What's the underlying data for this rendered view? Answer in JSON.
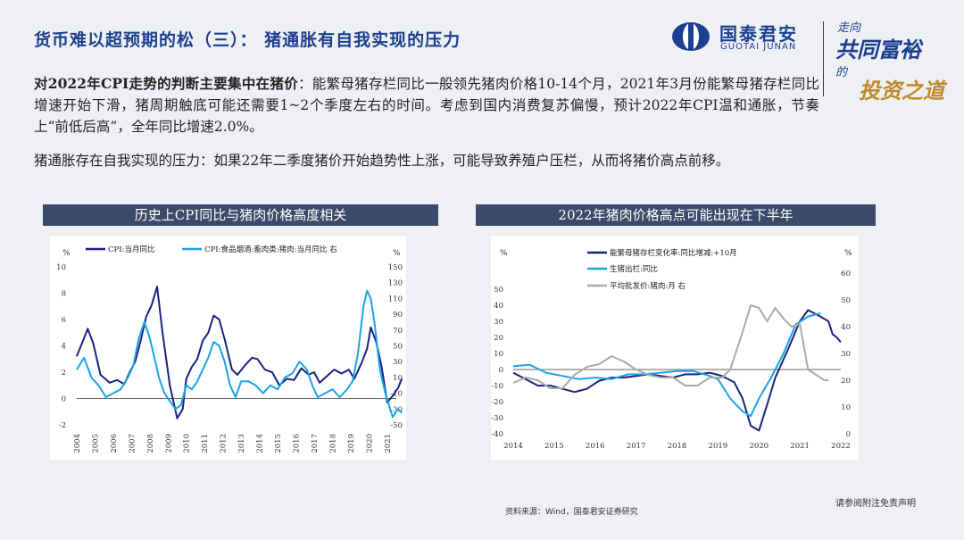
{
  "header": {
    "title": "货币难以超预期的松（三）：  猪通胀有自我实现的压力",
    "logo_cn": "国泰君安",
    "logo_en": "GUOTAI JUNAN",
    "slogan_1": "走向",
    "slogan_2": "共同富裕",
    "slogan_3": "的",
    "slogan_4": "投资之道"
  },
  "body": {
    "p1_bold": "对2022年CPI走势的判断主要集中在猪价",
    "p1_rest": "：能繁母猪存栏同比一般领先猪肉价格10-14个月，2021年3月份能繁母猪存栏同比增速开始下滑，猪周期触底可能还需要1~2个季度左右的时间。考虑到国内消费复苏偏慢，预计2022年CPI温和通胀，节奏上“前低后高”，全年同比增速2.0%。",
    "p2": "猪通胀存在自我实现的压力：如果22年二季度猪价开始趋势性上涨，可能导致养殖户压栏，从而将猪价高点前移。"
  },
  "section1_title": "历史上CPI同比与猪肉价格高度相关",
  "section2_title": "2022年猪肉价格高点可能出现在下半年",
  "footer": {
    "source": "资料来源：Wind，国泰君安证券研究",
    "disclaimer": "请参阅附注免责声明"
  },
  "colors": {
    "primary": "#1d3f8f",
    "header_bar": "#3a4a68",
    "series_navy": "#1a237e",
    "series_cyan": "#1aa3e8",
    "series_gray": "#aaaaaa"
  },
  "chart_data": [
    {
      "type": "line",
      "left_unit": "%",
      "right_unit": "%",
      "ylim_left": [
        -2,
        10
      ],
      "ylim_right": [
        -50,
        150
      ],
      "yticks_left": [
        -2,
        0,
        2,
        4,
        6,
        8,
        10
      ],
      "yticks_right": [
        -50,
        -30,
        -10,
        10,
        30,
        50,
        70,
        90,
        110,
        130,
        150
      ],
      "xlim": [
        2004,
        2021.5
      ],
      "xticks": [
        "2004",
        "2005",
        "2006",
        "2007",
        "2008",
        "2009",
        "2010",
        "2011",
        "2012",
        "2013",
        "2014",
        "2015",
        "2016",
        "2017",
        "2018",
        "2019",
        "2020",
        "2021"
      ],
      "series": [
        {
          "name": "CPI:当月同比",
          "color": "#1a237e",
          "axis": "left",
          "x": [
            2004.0,
            2004.6,
            2004.9,
            2005.3,
            2005.8,
            2006.2,
            2006.6,
            2006.9,
            2007.2,
            2007.5,
            2007.8,
            2008.1,
            2008.4,
            2008.7,
            2008.9,
            2009.1,
            2009.5,
            2009.8,
            2010.0,
            2010.3,
            2010.6,
            2010.9,
            2011.2,
            2011.5,
            2011.8,
            2012.1,
            2012.5,
            2012.8,
            2013.2,
            2013.6,
            2013.9,
            2014.3,
            2014.7,
            2015.1,
            2015.5,
            2015.9,
            2016.3,
            2016.7,
            2017.0,
            2017.3,
            2017.7,
            2018.1,
            2018.5,
            2018.9,
            2019.2,
            2019.6,
            2019.9,
            2020.1,
            2020.4,
            2020.7,
            2021.0,
            2021.3,
            2021.6,
            2021.8
          ],
          "y": [
            3.2,
            5.3,
            4.2,
            1.8,
            1.2,
            1.4,
            1.1,
            2.0,
            2.8,
            4.4,
            6.2,
            7.1,
            8.5,
            5.0,
            3.0,
            1.0,
            -1.5,
            -0.8,
            1.5,
            2.4,
            3.0,
            4.4,
            5.0,
            6.3,
            6.0,
            4.5,
            2.2,
            1.8,
            2.5,
            3.1,
            3.0,
            2.2,
            2.0,
            1.0,
            1.5,
            1.4,
            2.3,
            1.8,
            2.0,
            1.2,
            1.7,
            2.2,
            1.9,
            2.2,
            1.5,
            2.7,
            3.8,
            5.4,
            4.3,
            2.4,
            -0.3,
            0.2,
            0.8,
            1.5
          ]
        },
        {
          "name": "CPI:食品烟酒:畜肉类:猪肉:当月同比 右",
          "color": "#1aa3e8",
          "axis": "right",
          "x": [
            2004.0,
            2004.4,
            2004.8,
            2005.2,
            2005.6,
            2006.0,
            2006.4,
            2006.8,
            2007.1,
            2007.4,
            2007.7,
            2008.0,
            2008.2,
            2008.5,
            2008.8,
            2009.1,
            2009.4,
            2009.7,
            2010.0,
            2010.3,
            2010.6,
            2010.9,
            2011.2,
            2011.5,
            2011.8,
            2012.1,
            2012.4,
            2012.7,
            2013.0,
            2013.4,
            2013.8,
            2014.2,
            2014.6,
            2015.0,
            2015.4,
            2015.8,
            2016.2,
            2016.6,
            2016.9,
            2017.2,
            2017.6,
            2018.0,
            2018.4,
            2018.8,
            2019.1,
            2019.4,
            2019.7,
            2019.9,
            2020.1,
            2020.3,
            2020.6,
            2020.9,
            2021.1,
            2021.3,
            2021.6,
            2021.8
          ],
          "y": [
            20,
            35,
            10,
            0,
            -15,
            -10,
            -5,
            10,
            25,
            60,
            80,
            60,
            40,
            10,
            -10,
            -20,
            -30,
            -25,
            0,
            -5,
            5,
            20,
            35,
            55,
            50,
            30,
            0,
            -15,
            5,
            5,
            0,
            -10,
            0,
            -5,
            10,
            15,
            30,
            20,
            0,
            -15,
            -10,
            -5,
            -15,
            -5,
            5,
            40,
            100,
            120,
            110,
            80,
            20,
            -10,
            -25,
            -40,
            -30,
            -35
          ]
        }
      ]
    },
    {
      "type": "line",
      "left_unit": "%",
      "right_unit": "%",
      "ylim_left": [
        -40,
        60
      ],
      "ylim_right": [
        0,
        60
      ],
      "yticks_left": [
        -40,
        -30,
        -20,
        -10,
        0,
        10,
        20,
        30,
        40,
        50
      ],
      "yticks_right": [
        0,
        10,
        20,
        30,
        40,
        50,
        60
      ],
      "xlim": [
        2014,
        2022
      ],
      "xticks": [
        "2014",
        "2015",
        "2016",
        "2017",
        "2018",
        "2019",
        "2020",
        "2021",
        "2022"
      ],
      "series": [
        {
          "name": "能繁母猪存栏变化率:同比增减:+10月",
          "color": "#1a237e",
          "axis": "left",
          "x": [
            2014.0,
            2014.3,
            2014.6,
            2014.9,
            2015.2,
            2015.5,
            2015.8,
            2016.1,
            2016.4,
            2016.7,
            2017.0,
            2017.3,
            2017.6,
            2017.9,
            2018.2,
            2018.5,
            2018.8,
            2019.1,
            2019.4,
            2019.6,
            2019.8,
            2020.0,
            2020.2,
            2020.4,
            2020.7,
            2021.0,
            2021.2,
            2021.35,
            2021.5,
            2021.7,
            2021.8,
            2021.9,
            2022.0
          ],
          "y": [
            -2,
            -6,
            -10,
            -10,
            -12,
            -14,
            -12,
            -7,
            -5,
            -5,
            -4,
            -3,
            -4,
            -5,
            -3,
            -3,
            -2,
            -4,
            -8,
            -18,
            -35,
            -38,
            -22,
            -5,
            12,
            30,
            37,
            35,
            33,
            30,
            22,
            20,
            17
          ]
        },
        {
          "name": "生猪出栏:同比",
          "color": "#1aa3e8",
          "axis": "left",
          "x": [
            2014.0,
            2014.4,
            2014.8,
            2015.2,
            2015.6,
            2016.0,
            2016.4,
            2016.8,
            2017.2,
            2017.6,
            2018.0,
            2018.4,
            2018.8,
            2019.0,
            2019.3,
            2019.6,
            2019.8,
            2020.0,
            2020.3,
            2020.6,
            2020.9,
            2021.2,
            2021.5
          ],
          "y": [
            2,
            3,
            -2,
            -4,
            -6,
            -5,
            -6,
            -3,
            -3,
            -2,
            -1,
            -1,
            -4,
            -6,
            -18,
            -26,
            -29,
            -18,
            -5,
            10,
            28,
            33,
            35
          ]
        },
        {
          "name": "平均批发价:猪肉:月 右",
          "color": "#aaaaaa",
          "axis": "right",
          "x": [
            2014.0,
            2014.3,
            2014.6,
            2014.9,
            2015.2,
            2015.5,
            2015.8,
            2016.1,
            2016.4,
            2016.7,
            2017.0,
            2017.3,
            2017.6,
            2017.9,
            2018.2,
            2018.5,
            2018.8,
            2019.1,
            2019.3,
            2019.6,
            2019.8,
            2020.0,
            2020.2,
            2020.4,
            2020.6,
            2020.8,
            2021.0,
            2021.2,
            2021.4,
            2021.6,
            2021.7
          ],
          "y": [
            19,
            21,
            20,
            17,
            17,
            22,
            25,
            26,
            29,
            27,
            24,
            22,
            21,
            21,
            18,
            18,
            21,
            21,
            24,
            38,
            48,
            47,
            42,
            47,
            43,
            40,
            41,
            24,
            22,
            20,
            20
          ]
        }
      ]
    }
  ]
}
